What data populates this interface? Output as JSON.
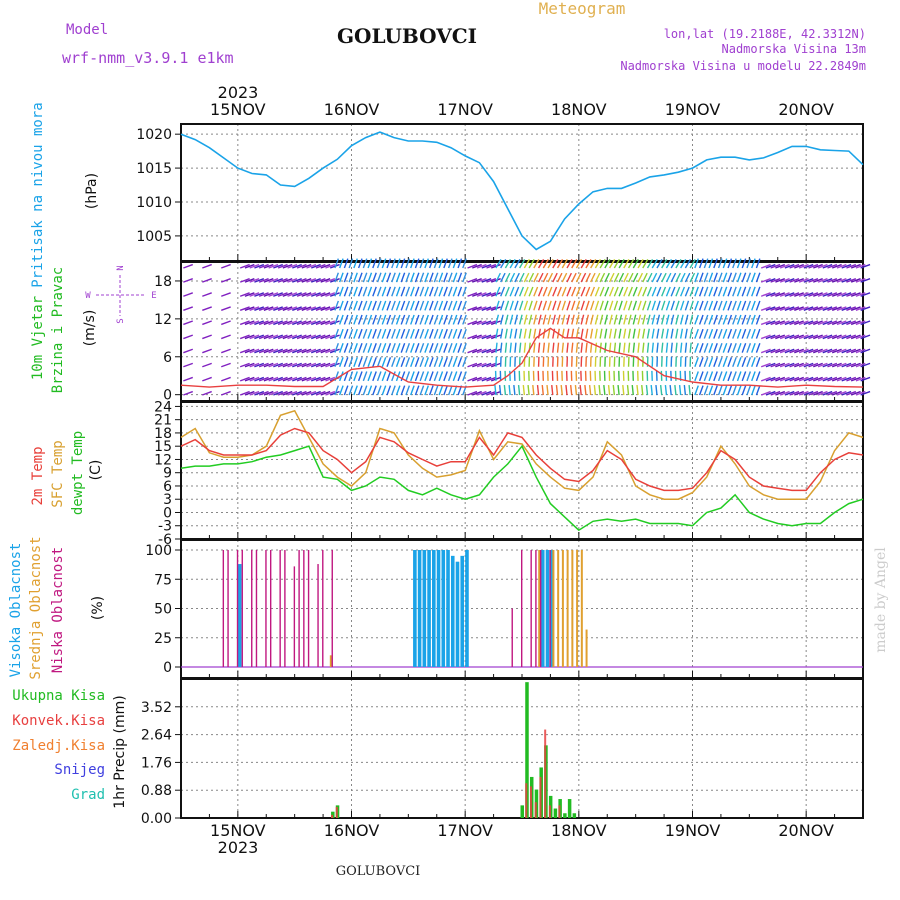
{
  "header": {
    "model_label": "Model",
    "model_name": "wrf-nmm_v3.9.1 e1km",
    "station": "GOLUBOVCI",
    "title": "Meteogram",
    "lonlat": "lon,lat (19.2188E, 42.3312N)",
    "elevation": "Nadmorska Visina 13m",
    "elevation_model": "Nadmorska Visina u modelu 22.2849m"
  },
  "footer": {
    "station": "GOLUBOVCI",
    "credit": "made by Angel"
  },
  "colors": {
    "pressure": "#1aa3e8",
    "temp2m": "#e8403a",
    "sfc": "#d8a030",
    "dew": "#22cc22",
    "purple": "#a040d0",
    "high_cloud": "#1aa3e8",
    "mid_cloud": "#e0a030",
    "low_cloud": "#c01880",
    "precip_total": "#22bb22",
    "precip_conv": "#e84040",
    "precip_frz": "#f08030",
    "precip_snow": "#4040e0",
    "precip_hail": "#20c0b0"
  },
  "time_axis": {
    "year": "2023",
    "days": [
      "15NOV",
      "16NOV",
      "17NOV",
      "18NOV",
      "19NOV",
      "20NOV"
    ],
    "start_hour": -12,
    "end_hour": 132
  },
  "wind_compass": {
    "n": "N",
    "s": "S",
    "e": "E",
    "w": "W"
  },
  "chart_data": [
    {
      "type": "line",
      "panel": "pressure",
      "ylabel": "Pritisak na nivou mora",
      "unit": "(hPa)",
      "yticks": [
        1005,
        1010,
        1015,
        1020
      ],
      "ylim": [
        1001.3,
        1021.5
      ],
      "series": [
        {
          "name": "Pritisak na nivou mora",
          "x": [
            -12,
            -9,
            -6,
            -3,
            0,
            3,
            6,
            9,
            12,
            15,
            18,
            21,
            24,
            27,
            30,
            33,
            36,
            39,
            42,
            45,
            48,
            51,
            54,
            57,
            60,
            63,
            66,
            69,
            72,
            75,
            78,
            81,
            84,
            87,
            90,
            93,
            96,
            99,
            102,
            105,
            108,
            111,
            114,
            117,
            120,
            123,
            126,
            129,
            132
          ],
          "values": [
            1020,
            1019.2,
            1018,
            1016.5,
            1015,
            1014.2,
            1014,
            1012.5,
            1012.3,
            1013.5,
            1015,
            1016.3,
            1018.3,
            1019.5,
            1020.3,
            1019.5,
            1019,
            1019,
            1018.8,
            1018,
            1016.8,
            1015.8,
            1013,
            1009,
            1005,
            1003,
            1004.2,
            1007.5,
            1009.7,
            1011.5,
            1012,
            1012,
            1012.8,
            1013.7,
            1014,
            1014.4,
            1015,
            1016.2,
            1016.6,
            1016.6,
            1016.2,
            1016.5,
            1017.3,
            1018.2,
            1018.2,
            1017.7,
            1017.6,
            1017.5,
            1015.5
          ]
        }
      ]
    },
    {
      "type": "line",
      "panel": "wind",
      "ylabel": "10m Vjetar Brzina i Pravac",
      "unit": "(m/s)",
      "yticks": [
        0,
        6,
        12,
        18
      ],
      "ylim": [
        -1,
        21
      ],
      "series": [
        {
          "name": "Brzina",
          "x": [
            -12,
            -6,
            0,
            6,
            12,
            18,
            24,
            30,
            36,
            42,
            48,
            54,
            57,
            60,
            63,
            66,
            69,
            72,
            78,
            84,
            90,
            96,
            102,
            108,
            114,
            120,
            126,
            132
          ],
          "values": [
            1.5,
            1.2,
            1.5,
            1.5,
            1.3,
            1.3,
            4,
            4.5,
            2,
            1.5,
            1.2,
            1.5,
            3,
            5,
            9,
            10.5,
            9,
            9,
            7,
            6,
            3,
            2,
            1.5,
            1.5,
            1.2,
            1.5,
            1.3,
            1.2
          ]
        }
      ]
    },
    {
      "type": "line",
      "panel": "temperature",
      "ylabel": "2m Temp / SFC Temp / dewpt Temp",
      "unit": "(C)",
      "yticks": [
        -6,
        -3,
        0,
        3,
        6,
        9,
        12,
        15,
        18,
        21,
        24
      ],
      "ylim": [
        -6,
        25
      ],
      "series": [
        {
          "name": "2m Temp",
          "x": [
            -12,
            -9,
            -6,
            -3,
            0,
            3,
            6,
            9,
            12,
            15,
            18,
            21,
            24,
            27,
            30,
            33,
            36,
            39,
            42,
            45,
            48,
            51,
            54,
            57,
            60,
            63,
            66,
            69,
            72,
            75,
            78,
            81,
            84,
            87,
            90,
            93,
            96,
            99,
            102,
            105,
            108,
            111,
            114,
            117,
            120,
            123,
            126,
            129,
            132
          ],
          "values": [
            15,
            16.5,
            14,
            13,
            13,
            13,
            14,
            17.5,
            19,
            18,
            14,
            12,
            9,
            11.5,
            17,
            16,
            13.5,
            12,
            10.5,
            11.5,
            11.5,
            17,
            13,
            18,
            17,
            13,
            10,
            7.5,
            7,
            9.5,
            14,
            12,
            7.5,
            6,
            5,
            5,
            5.5,
            9,
            14,
            12,
            8,
            6,
            5.5,
            5,
            5,
            9,
            12,
            13.5,
            13
          ]
        },
        {
          "name": "SFC Temp",
          "x": [
            -12,
            -9,
            -6,
            -3,
            0,
            3,
            6,
            9,
            12,
            15,
            18,
            21,
            24,
            27,
            30,
            33,
            36,
            39,
            42,
            45,
            48,
            51,
            54,
            57,
            60,
            63,
            66,
            69,
            72,
            75,
            78,
            81,
            84,
            87,
            90,
            93,
            96,
            99,
            102,
            105,
            108,
            111,
            114,
            117,
            120,
            123,
            126,
            129,
            132
          ],
          "values": [
            17,
            19,
            13.5,
            12.5,
            12.5,
            13,
            15,
            22,
            23,
            17,
            11,
            8,
            6,
            9,
            19,
            18,
            13,
            10,
            8,
            8.5,
            9.5,
            18.5,
            12,
            16,
            15.5,
            11,
            8,
            5.5,
            5,
            8,
            16,
            13,
            6,
            4,
            3,
            3,
            4.5,
            8,
            15,
            11,
            6,
            4,
            3,
            3,
            3,
            7,
            14,
            18,
            17
          ]
        },
        {
          "name": "dewpt Temp",
          "x": [
            -12,
            -9,
            -6,
            -3,
            0,
            3,
            6,
            9,
            12,
            15,
            18,
            21,
            24,
            27,
            30,
            33,
            36,
            39,
            42,
            45,
            48,
            51,
            54,
            57,
            60,
            63,
            66,
            69,
            72,
            75,
            78,
            81,
            84,
            87,
            90,
            93,
            96,
            99,
            102,
            105,
            108,
            111,
            114,
            117,
            120,
            123,
            126,
            129,
            132
          ],
          "values": [
            10,
            10.5,
            10.5,
            11,
            11,
            11.5,
            12.5,
            13,
            14,
            15,
            8,
            7.5,
            5,
            6,
            8,
            7.5,
            5,
            4,
            5.5,
            4,
            3,
            4,
            8,
            11,
            15,
            8,
            2,
            -1,
            -4,
            -2,
            -1.5,
            -2,
            -1.5,
            -2.5,
            -2.5,
            -2.5,
            -3,
            0,
            1,
            4,
            0,
            -1.5,
            -2.5,
            -3,
            -2.5,
            -2.5,
            0,
            2,
            3
          ]
        }
      ]
    },
    {
      "type": "bar",
      "panel": "clouds",
      "ylabel": "Visoka Oblacnost / Srednja Oblacnost / Niska Oblacnost",
      "unit": "(%)",
      "yticks": [
        0,
        25,
        50,
        75,
        100
      ],
      "ylim": [
        0,
        100
      ],
      "series": [
        {
          "name": "Visoka Oblacnost",
          "x": [
            0,
            37,
            38,
            39,
            40,
            41,
            42,
            43,
            44,
            45,
            46,
            47,
            48,
            64,
            65,
            66
          ],
          "values": [
            88,
            100,
            100,
            100,
            100,
            100,
            100,
            100,
            100,
            95,
            90,
            95,
            100,
            100,
            100,
            100
          ]
        },
        {
          "name": "Srednja Oblacnost",
          "x": [
            19,
            63,
            66,
            67,
            68,
            69,
            70,
            71,
            72,
            73
          ],
          "values": [
            10,
            100,
            100,
            100,
            100,
            100,
            100,
            100,
            100,
            32
          ]
        },
        {
          "name": "Niska Oblacnost",
          "x": [
            -3,
            -2,
            0,
            1,
            3,
            4,
            6,
            7,
            9,
            10,
            12,
            13,
            14,
            15,
            17,
            18,
            20,
            58,
            60,
            62,
            63,
            64,
            66
          ],
          "values": [
            100,
            100,
            100,
            100,
            100,
            100,
            100,
            100,
            100,
            100,
            86,
            100,
            100,
            100,
            88,
            100,
            100,
            50,
            100,
            100,
            100,
            100,
            100
          ]
        }
      ]
    },
    {
      "type": "bar",
      "panel": "precipitation",
      "ylabel": "1hr Precip (mm)",
      "unit": "(mm)",
      "yticks": [
        0,
        0.88,
        1.76,
        2.64,
        3.52
      ],
      "ylim": [
        0,
        4.4
      ],
      "legend": [
        "Ukupna Kisa",
        "Konvek.Kisa",
        "Zaledj.Kisa",
        "Snijeg",
        "Grad"
      ],
      "series": [
        {
          "name": "Ukupna Kisa",
          "x": [
            20,
            21,
            60,
            61,
            62,
            63,
            64,
            65,
            66,
            67,
            68,
            69,
            70,
            71
          ],
          "values": [
            0.2,
            0.4,
            0.4,
            4.3,
            1.3,
            0.9,
            1.6,
            2.3,
            0.7,
            0.3,
            0.6,
            0.15,
            0.6,
            0.15
          ]
        },
        {
          "name": "Konvek.Kisa",
          "x": [
            20,
            21,
            61,
            62,
            63,
            64,
            65,
            66,
            68
          ],
          "values": [
            0.1,
            0.35,
            1.1,
            1.0,
            0.5,
            1.3,
            2.8,
            0.4,
            0.4
          ]
        }
      ]
    }
  ]
}
